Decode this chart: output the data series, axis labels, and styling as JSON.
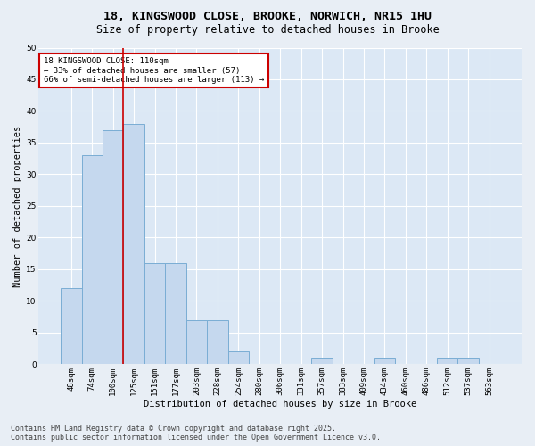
{
  "title1": "18, KINGSWOOD CLOSE, BROOKE, NORWICH, NR15 1HU",
  "title2": "Size of property relative to detached houses in Brooke",
  "xlabel": "Distribution of detached houses by size in Brooke",
  "ylabel": "Number of detached properties",
  "categories": [
    "48sqm",
    "74sqm",
    "100sqm",
    "125sqm",
    "151sqm",
    "177sqm",
    "203sqm",
    "228sqm",
    "254sqm",
    "280sqm",
    "306sqm",
    "331sqm",
    "357sqm",
    "383sqm",
    "409sqm",
    "434sqm",
    "460sqm",
    "486sqm",
    "512sqm",
    "537sqm",
    "563sqm"
  ],
  "values": [
    12,
    33,
    37,
    38,
    16,
    16,
    7,
    7,
    2,
    0,
    0,
    0,
    1,
    0,
    0,
    1,
    0,
    0,
    1,
    1,
    0
  ],
  "bar_color": "#c5d8ee",
  "bar_edge_color": "#7aadd4",
  "vline_x_index": 2,
  "vline_color": "#cc0000",
  "annotation_text": "18 KINGSWOOD CLOSE: 110sqm\n← 33% of detached houses are smaller (57)\n66% of semi-detached houses are larger (113) →",
  "annotation_box_color": "#ffffff",
  "annotation_box_edge": "#cc0000",
  "footnote": "Contains HM Land Registry data © Crown copyright and database right 2025.\nContains public sector information licensed under the Open Government Licence v3.0.",
  "ylim": [
    0,
    50
  ],
  "yticks": [
    0,
    5,
    10,
    15,
    20,
    25,
    30,
    35,
    40,
    45,
    50
  ],
  "bg_color": "#e8eef5",
  "plot_bg_color": "#dce8f5",
  "grid_color": "#ffffff",
  "title_fontsize": 9.5,
  "subtitle_fontsize": 8.5,
  "axis_label_fontsize": 7.5,
  "tick_fontsize": 6.5,
  "footnote_fontsize": 6.0,
  "annotation_fontsize": 6.5
}
